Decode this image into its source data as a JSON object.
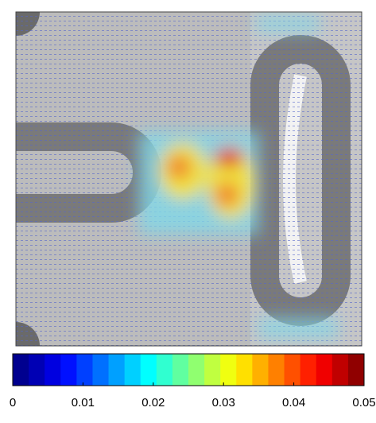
{
  "chart_data": {
    "type": "colorbar",
    "clim": [
      0,
      0.05
    ],
    "xticks": [
      0,
      0.01,
      0.02,
      0.03,
      0.04,
      0.05
    ],
    "colormap": [
      "#00008f",
      "#0000b4",
      "#0000e0",
      "#0010ff",
      "#0040ff",
      "#0070ff",
      "#00a0ff",
      "#00d0ff",
      "#00ffff",
      "#30ffd0",
      "#60ffa0",
      "#90ff70",
      "#c0ff40",
      "#f0ff10",
      "#ffe000",
      "#ffb000",
      "#ff8000",
      "#ff5000",
      "#ff2000",
      "#f00000",
      "#c00000",
      "#900000"
    ]
  }
}
